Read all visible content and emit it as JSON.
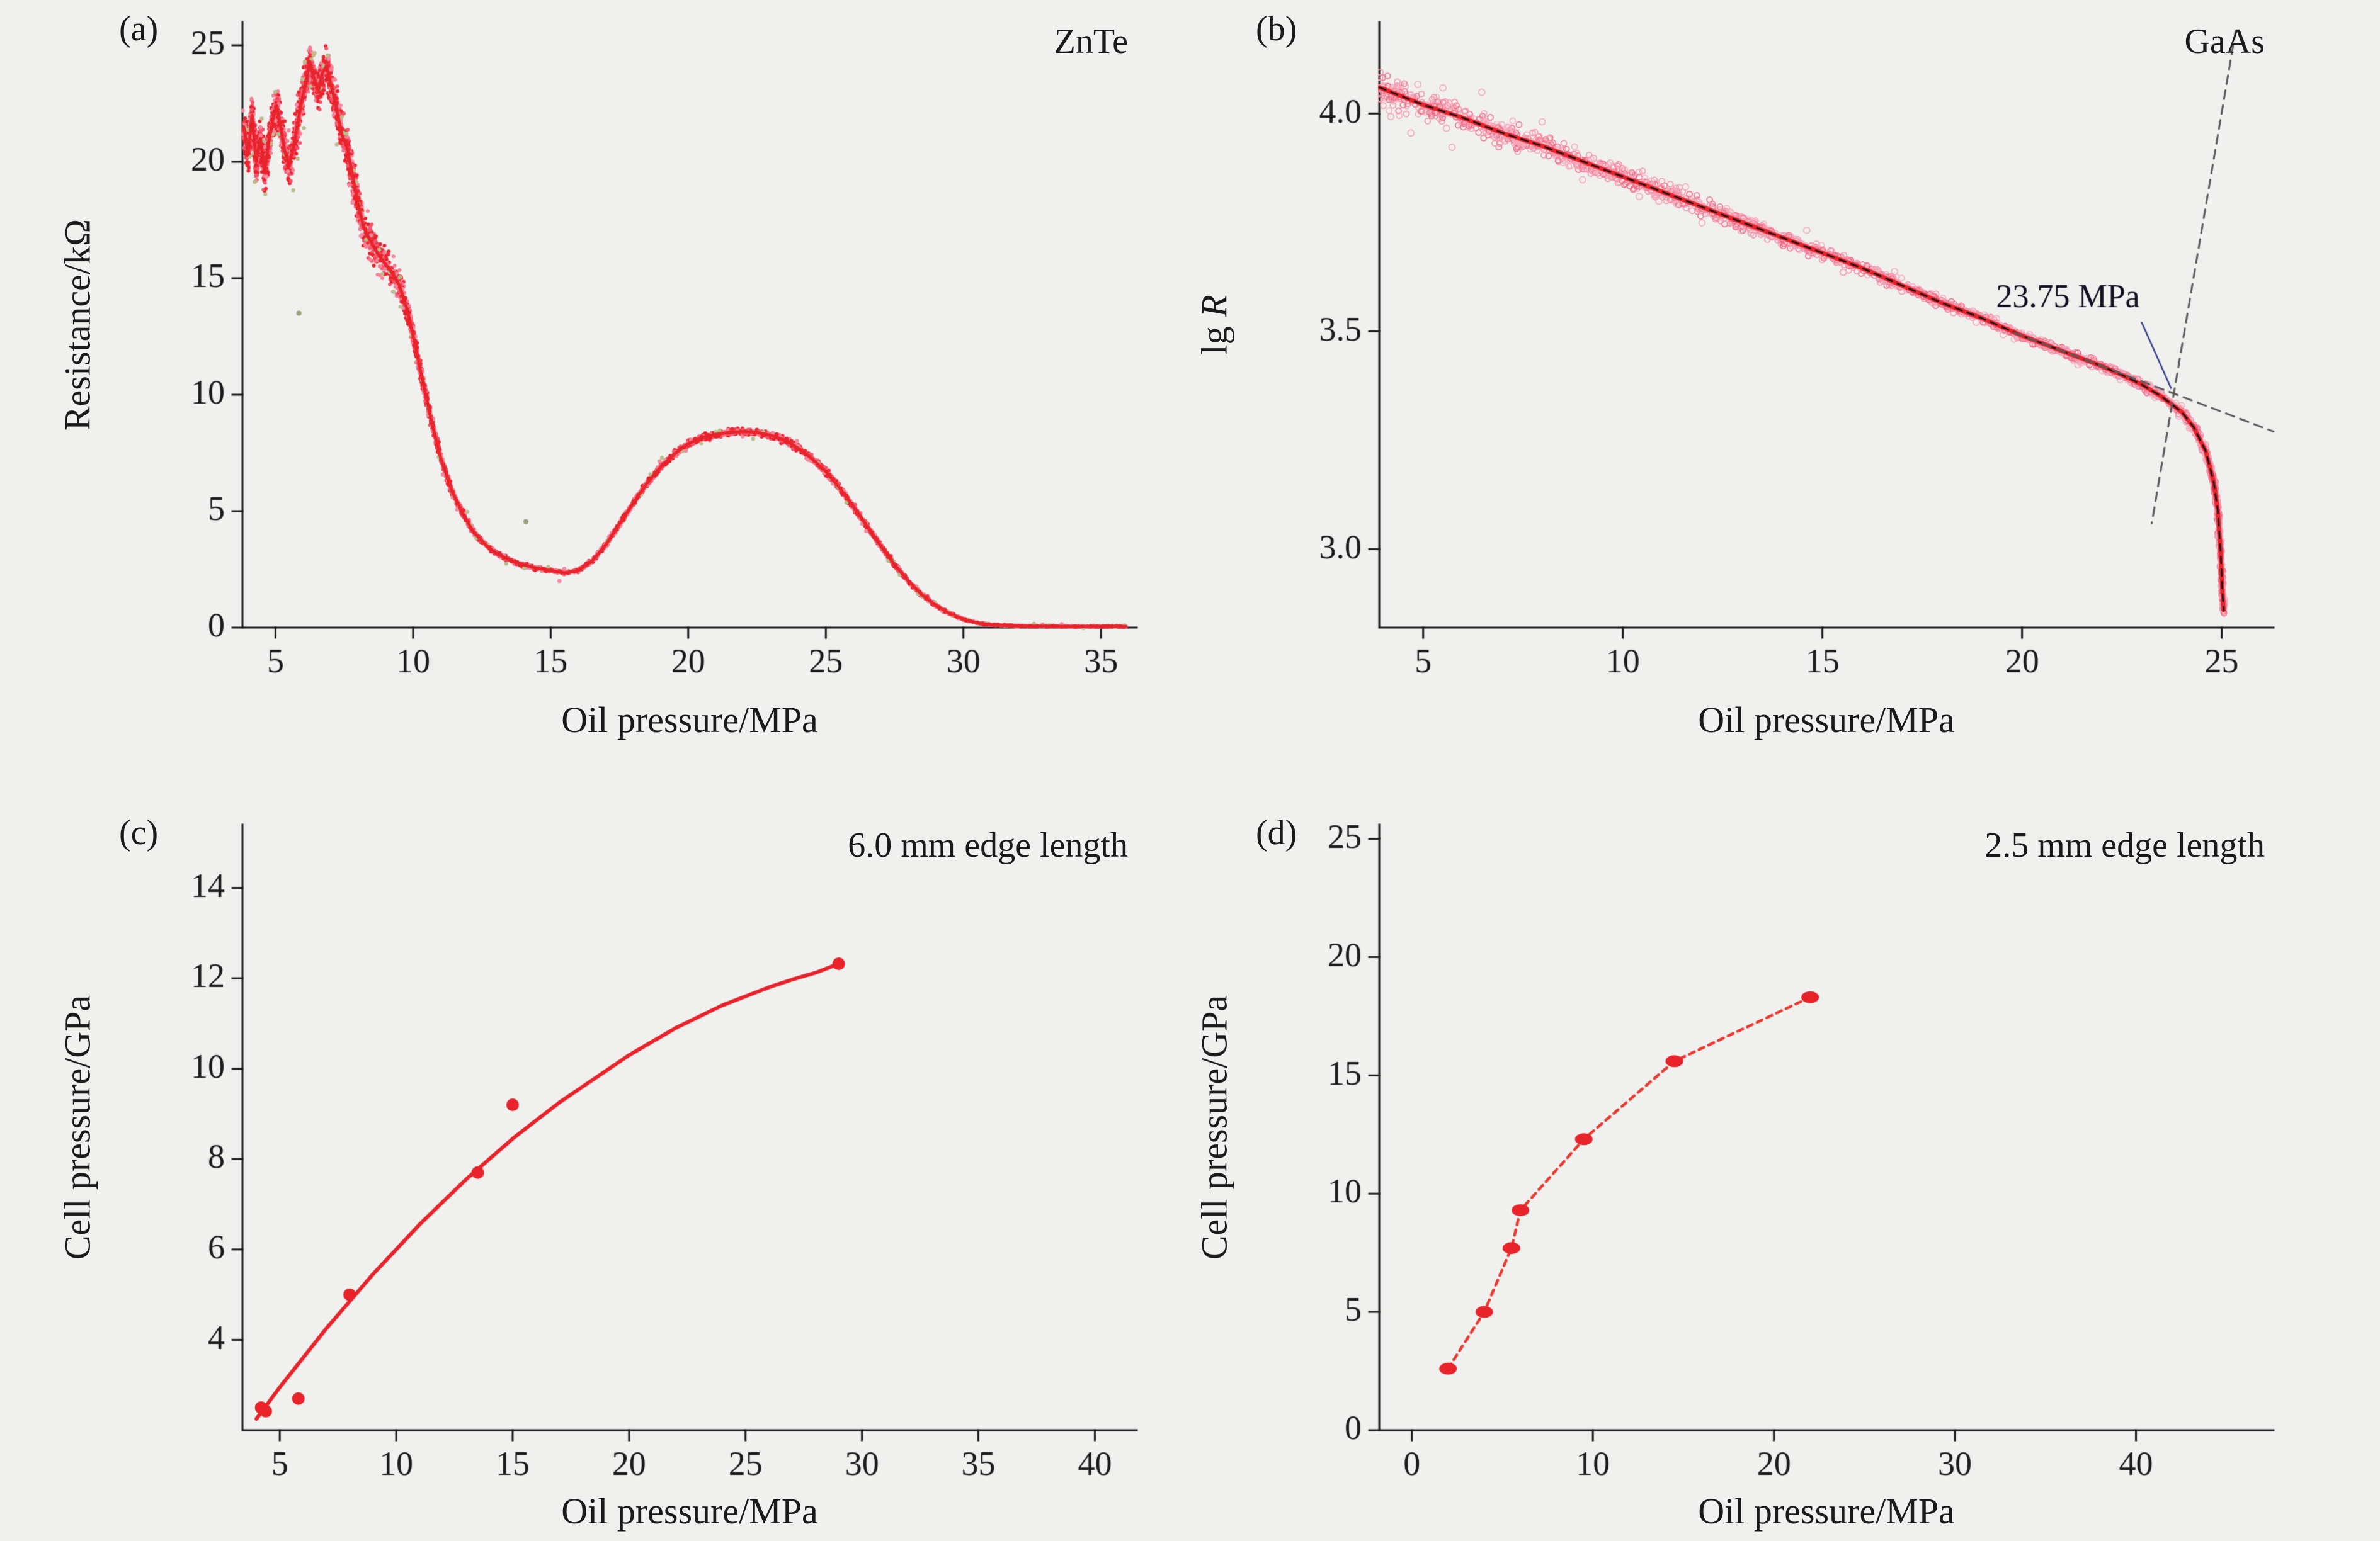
{
  "page": {
    "background": "#f0f1ef"
  },
  "chart_data": [
    {
      "type": "line",
      "panel_label": "(a)",
      "corner_label": "ZnTe",
      "xlabel": "Oil pressure/MPa",
      "ylabel_prefix": "Resistance/kΩ",
      "ylabel_italic": "",
      "xlim": [
        3.8,
        36.3
      ],
      "ylim": [
        0,
        26
      ],
      "xticks": [
        5,
        10,
        15,
        20,
        25,
        30,
        35
      ],
      "yticks": [
        0,
        5,
        10,
        15,
        20,
        25
      ],
      "ytick_decimals": 0,
      "accent_color": "#e8232a",
      "curves": {
        "main": [
          [
            3.85,
            21.5
          ],
          [
            4.0,
            20.3
          ],
          [
            4.15,
            22.0
          ],
          [
            4.3,
            20.0
          ],
          [
            4.45,
            21.0
          ],
          [
            4.6,
            19.6
          ],
          [
            4.75,
            20.8
          ],
          [
            4.9,
            21.8
          ],
          [
            5.05,
            22.4
          ],
          [
            5.2,
            21.4
          ],
          [
            5.35,
            20.4
          ],
          [
            5.5,
            19.8
          ],
          [
            5.65,
            20.6
          ],
          [
            5.8,
            21.6
          ],
          [
            5.95,
            22.6
          ],
          [
            6.1,
            23.4
          ],
          [
            6.25,
            24.3
          ],
          [
            6.4,
            23.6
          ],
          [
            6.55,
            23.0
          ],
          [
            6.7,
            23.8
          ],
          [
            6.85,
            24.1
          ],
          [
            7.0,
            23.4
          ],
          [
            7.2,
            22.4
          ],
          [
            7.4,
            21.2
          ],
          [
            7.6,
            20.6
          ],
          [
            7.8,
            19.4
          ],
          [
            8.0,
            18.2
          ],
          [
            8.2,
            17.2
          ],
          [
            8.4,
            16.7
          ],
          [
            8.6,
            16.3
          ],
          [
            8.8,
            15.9
          ],
          [
            9.0,
            15.6
          ],
          [
            9.2,
            15.3
          ],
          [
            9.5,
            14.7
          ],
          [
            9.8,
            13.6
          ],
          [
            10.1,
            12.0
          ],
          [
            10.4,
            10.3
          ],
          [
            10.7,
            8.7
          ],
          [
            11.0,
            7.3
          ],
          [
            11.4,
            5.9
          ],
          [
            11.8,
            4.9
          ],
          [
            12.2,
            4.1
          ],
          [
            12.6,
            3.6
          ],
          [
            13.0,
            3.2
          ],
          [
            13.5,
            2.9
          ],
          [
            14.0,
            2.7
          ],
          [
            14.5,
            2.55
          ],
          [
            15.0,
            2.45
          ],
          [
            15.5,
            2.35
          ],
          [
            16.0,
            2.45
          ],
          [
            16.5,
            2.85
          ],
          [
            17.0,
            3.55
          ],
          [
            17.5,
            4.45
          ],
          [
            18.0,
            5.35
          ],
          [
            18.5,
            6.2
          ],
          [
            19.0,
            6.9
          ],
          [
            19.5,
            7.45
          ],
          [
            20.0,
            7.9
          ],
          [
            20.5,
            8.15
          ],
          [
            21.0,
            8.3
          ],
          [
            21.5,
            8.38
          ],
          [
            22.0,
            8.42
          ],
          [
            22.5,
            8.38
          ],
          [
            23.0,
            8.25
          ],
          [
            23.5,
            8.05
          ],
          [
            24.0,
            7.7
          ],
          [
            24.5,
            7.25
          ],
          [
            25.0,
            6.7
          ],
          [
            25.5,
            6.0
          ],
          [
            26.0,
            5.2
          ],
          [
            26.5,
            4.35
          ],
          [
            27.0,
            3.5
          ],
          [
            27.5,
            2.7
          ],
          [
            28.0,
            2.0
          ],
          [
            28.5,
            1.4
          ],
          [
            29.0,
            0.95
          ],
          [
            29.5,
            0.6
          ],
          [
            30.0,
            0.36
          ],
          [
            30.5,
            0.2
          ],
          [
            31.0,
            0.12
          ],
          [
            32.0,
            0.07
          ],
          [
            33.0,
            0.06
          ],
          [
            34.0,
            0.05
          ],
          [
            35.0,
            0.05
          ],
          [
            35.9,
            0.05
          ]
        ]
      },
      "series": [
        {
          "kind": "cloud",
          "curve": "main",
          "density": 2.0,
          "r": 3,
          "xjitter": 0.07,
          "seed": 7,
          "colors": [
            "#ee2433",
            "#f2576e",
            "#f77f95",
            "#e8232a"
          ],
          "amp": [
            [
              3.8,
              1.1
            ],
            [
              5,
              1.2
            ],
            [
              7,
              1.3
            ],
            [
              9,
              1.0
            ],
            [
              9.8,
              0.6
            ],
            [
              10.5,
              0.3
            ],
            [
              11.5,
              0.18
            ],
            [
              13,
              0.12
            ],
            [
              16,
              0.1
            ],
            [
              18,
              0.14
            ],
            [
              19.5,
              0.2
            ],
            [
              21,
              0.22
            ],
            [
              23,
              0.22
            ],
            [
              25,
              0.2
            ],
            [
              27,
              0.14
            ],
            [
              28.5,
              0.1
            ],
            [
              30,
              0.05
            ],
            [
              32,
              0.03
            ],
            [
              36,
              0.03
            ]
          ]
        },
        {
          "kind": "cloud",
          "curve": "main",
          "density": 0.06,
          "r": 3.2,
          "xjitter": 0.1,
          "seed": 19,
          "colors": [
            "#f28aa0",
            "#b9bd8a"
          ],
          "amp": [
            [
              3.8,
              2.2
            ],
            [
              7,
              2.6
            ],
            [
              10,
              0.8
            ],
            [
              14,
              0.5
            ],
            [
              20,
              0.5
            ],
            [
              28,
              0.3
            ],
            [
              36,
              0.1
            ]
          ]
        },
        {
          "kind": "curve",
          "curve": "main",
          "color": "#e8232a",
          "width": 5
        },
        {
          "kind": "markers",
          "points": [
            [
              5.85,
              13.5
            ],
            [
              14.1,
              4.55
            ]
          ],
          "r": 4,
          "color": "#9aa077"
        }
      ],
      "annotations": []
    },
    {
      "type": "line",
      "panel_label": "(b)",
      "corner_label": "GaAs",
      "xlabel": "Oil pressure/MPa",
      "ylabel_prefix": "lg ",
      "ylabel_italic": "R",
      "xlim": [
        3.9,
        26.3
      ],
      "ylim": [
        2.82,
        4.21
      ],
      "xticks": [
        5,
        10,
        15,
        20,
        25
      ],
      "yticks": [
        3.0,
        3.5,
        4.0
      ],
      "ytick_decimals": 1,
      "accent_color": "#e8232a",
      "transition_pressure_MPa": 23.75,
      "curves": {
        "main": [
          [
            3.9,
            4.06
          ],
          [
            5,
            4.02
          ],
          [
            6,
            3.99
          ],
          [
            7,
            3.955
          ],
          [
            8,
            3.925
          ],
          [
            9,
            3.89
          ],
          [
            10,
            3.855
          ],
          [
            11,
            3.82
          ],
          [
            12,
            3.785
          ],
          [
            13,
            3.75
          ],
          [
            14,
            3.715
          ],
          [
            15,
            3.68
          ],
          [
            16,
            3.645
          ],
          [
            17,
            3.605
          ],
          [
            18,
            3.565
          ],
          [
            19,
            3.53
          ],
          [
            20,
            3.49
          ],
          [
            21,
            3.455
          ],
          [
            22,
            3.42
          ],
          [
            22.5,
            3.4
          ],
          [
            23,
            3.378
          ],
          [
            23.5,
            3.35
          ],
          [
            24,
            3.315
          ],
          [
            24.3,
            3.28
          ],
          [
            24.6,
            3.225
          ],
          [
            24.8,
            3.155
          ],
          [
            24.9,
            3.09
          ],
          [
            24.97,
            3.0
          ],
          [
            25.02,
            2.9
          ],
          [
            25.05,
            2.86
          ]
        ]
      },
      "series": [
        {
          "kind": "cloud",
          "curve": "main",
          "density": 1.1,
          "r": 4.5,
          "marker": "circle",
          "seed": 11,
          "xjitter": 0.05,
          "colors": [
            "#f291a8",
            "#ee6a85",
            "#f6aabc"
          ],
          "amp": [
            [
              3.9,
              0.05
            ],
            [
              8,
              0.038
            ],
            [
              12,
              0.028
            ],
            [
              16,
              0.02
            ],
            [
              20,
              0.015
            ],
            [
              23,
              0.013
            ],
            [
              25,
              0.018
            ]
          ]
        },
        {
          "kind": "cloud",
          "curve": "main",
          "density": 0.05,
          "r": 5,
          "marker": "circle",
          "seed": 3,
          "colors": [
            "#f4a7bb"
          ],
          "amp": [
            [
              3.9,
              0.13
            ],
            [
              6,
              0.11
            ],
            [
              9,
              0.08
            ],
            [
              12,
              0.05
            ],
            [
              25,
              0.03
            ]
          ]
        },
        {
          "kind": "curve",
          "curve": "main",
          "color": "#e8232a",
          "width": 7
        },
        {
          "kind": "curve",
          "curve": "main",
          "color": "#151515",
          "width": 2.6,
          "dash": [
            11,
            9
          ]
        },
        {
          "kind": "line",
          "points": [
            [
              19.8,
              3.497
            ],
            [
              26.3,
              3.27
            ]
          ],
          "color": "#5a5a5a",
          "width": 3,
          "dash": [
            14,
            10
          ]
        },
        {
          "kind": "line",
          "points": [
            [
              25.35,
              4.19
            ],
            [
              23.25,
              3.06
            ]
          ],
          "color": "#5a5a5a",
          "width": 3,
          "dash": [
            14,
            10
          ]
        }
      ],
      "annotations": [
        {
          "text": "23.75 MPa",
          "x": 22.95,
          "y": 3.555,
          "align": "right",
          "color": "#101020",
          "pointer": {
            "x1": 23.0,
            "y1": 3.52,
            "x2": 23.73,
            "y2": 3.37,
            "color": "#3b3f8e",
            "width": 2.5
          }
        }
      ]
    },
    {
      "type": "scatter",
      "panel_label": "(c)",
      "corner_label": "6.0 mm edge length",
      "xlabel": "Oil pressure/MPa",
      "ylabel_prefix": "Cell pressure/GPa",
      "ylabel_italic": "",
      "xlim": [
        3.4,
        41.8
      ],
      "ylim": [
        2,
        15.4
      ],
      "xticks": [
        5,
        10,
        15,
        20,
        25,
        30,
        35,
        40
      ],
      "yticks": [
        4,
        6,
        8,
        10,
        12,
        14
      ],
      "ytick_decimals": 0,
      "accent_color": "#e8232a",
      "curves": {
        "fit": [
          [
            4,
            2.25
          ],
          [
            5,
            2.95
          ],
          [
            6,
            3.6
          ],
          [
            7,
            4.25
          ],
          [
            8,
            4.85
          ],
          [
            9,
            5.45
          ],
          [
            10,
            6.0
          ],
          [
            11,
            6.55
          ],
          [
            12,
            7.05
          ],
          [
            13,
            7.55
          ],
          [
            14,
            8.0
          ],
          [
            15,
            8.45
          ],
          [
            16,
            8.85
          ],
          [
            17,
            9.25
          ],
          [
            18,
            9.6
          ],
          [
            19,
            9.95
          ],
          [
            20,
            10.3
          ],
          [
            21,
            10.6
          ],
          [
            22,
            10.9
          ],
          [
            23,
            11.15
          ],
          [
            24,
            11.4
          ],
          [
            25,
            11.6
          ],
          [
            26,
            11.8
          ],
          [
            27,
            11.97
          ],
          [
            28,
            12.12
          ],
          [
            29,
            12.32
          ]
        ]
      },
      "series": [
        {
          "kind": "curve",
          "curve": "fit",
          "color": "#e8232a",
          "width": 6
        },
        {
          "kind": "markers",
          "points": [
            [
              4.2,
              2.5
            ],
            [
              4.4,
              2.42
            ],
            [
              5.8,
              2.7
            ],
            [
              8,
              5.0
            ],
            [
              13.5,
              7.7
            ],
            [
              15,
              9.2
            ],
            [
              29,
              12.32
            ]
          ],
          "r": 10,
          "color": "#e8232a"
        }
      ],
      "annotations": []
    },
    {
      "type": "scatter",
      "panel_label": "(d)",
      "corner_label": "2.5 mm edge length",
      "xlabel": "Oil pressure/MPa",
      "ylabel_prefix": "Cell pressure/GPa",
      "ylabel_italic": "",
      "xlim": [
        -1.8,
        47.6
      ],
      "ylim": [
        0,
        25.6
      ],
      "xticks": [
        0,
        10,
        20,
        30,
        40
      ],
      "yticks": [
        0,
        5,
        10,
        15,
        20,
        25
      ],
      "ytick_decimals": 0,
      "accent_color": "#e8232a",
      "curves": {
        "path": [
          [
            2,
            2.6
          ],
          [
            4,
            5.0
          ],
          [
            5.5,
            7.7
          ],
          [
            6,
            9.3
          ],
          [
            9.5,
            12.3
          ],
          [
            14.5,
            15.6
          ],
          [
            22,
            18.3
          ]
        ]
      },
      "series": [
        {
          "kind": "curve",
          "curve": "path",
          "color": "#e8392f",
          "width": 4.5,
          "dash": [
            9,
            8
          ]
        },
        {
          "kind": "markers",
          "points": [
            [
              2,
              2.6
            ],
            [
              4,
              5.0
            ],
            [
              5.5,
              7.7
            ],
            [
              6,
              9.3
            ],
            [
              9.5,
              12.3
            ],
            [
              14.5,
              15.6
            ],
            [
              22,
              18.3
            ]
          ],
          "rx": 14,
          "ry": 9.5,
          "color": "#e8232a"
        }
      ],
      "annotations": []
    }
  ]
}
